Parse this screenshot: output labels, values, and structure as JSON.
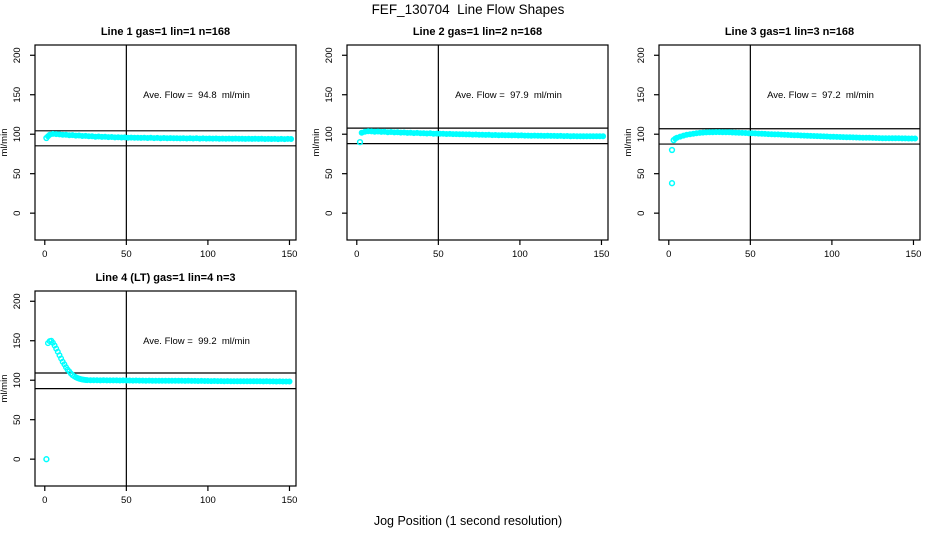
{
  "page": {
    "title": "FEF_130704  Line Flow Shapes",
    "xlabel": "Jog Position (1 second resolution)"
  },
  "style": {
    "accent": "#00FFFF",
    "text": "#000000",
    "background": "#FFFFFF"
  },
  "chart_data": [
    {
      "type": "scatter",
      "title": "Line 1 gas=1 lin=1 n=168",
      "ylabel": "ml/min",
      "annotation": "Ave. Flow =  94.8  ml/min",
      "ave_flow": 94.8,
      "xlim": [
        -6,
        154
      ],
      "ylim": [
        -34,
        213
      ],
      "xticks": [
        0,
        50,
        100,
        150
      ],
      "yticks": [
        0,
        50,
        100,
        150,
        200
      ],
      "vline_x": 50,
      "hlines_y": [
        104.3,
        85.3
      ],
      "line_start_x": 2,
      "outlier_points": [
        [
          1,
          95.2
        ]
      ],
      "points": [
        [
          2,
          97.5
        ],
        [
          3,
          99.3
        ],
        [
          5,
          100.4
        ],
        [
          7,
          100.2
        ],
        [
          9,
          99.8
        ],
        [
          11,
          99.2
        ],
        [
          13,
          99.4
        ],
        [
          15,
          98.7
        ],
        [
          17,
          98.9
        ],
        [
          19,
          98.2
        ],
        [
          21,
          98.4
        ],
        [
          23,
          97.7
        ],
        [
          25,
          97.9
        ],
        [
          27,
          97.3
        ],
        [
          29,
          97.5
        ],
        [
          31,
          96.9
        ],
        [
          33,
          97.1
        ],
        [
          35,
          96.6
        ],
        [
          37,
          96.8
        ],
        [
          39,
          96.3
        ],
        [
          41,
          96.5
        ],
        [
          43,
          96
        ],
        [
          45,
          96.2
        ],
        [
          47,
          95.8
        ],
        [
          49,
          95.9
        ],
        [
          51,
          95.6
        ],
        [
          53,
          95.7
        ],
        [
          55,
          95.4
        ],
        [
          57,
          95.6
        ],
        [
          59,
          95.3
        ],
        [
          61,
          95.5
        ],
        [
          63,
          95.2
        ],
        [
          65,
          95.4
        ],
        [
          67,
          95.1
        ],
        [
          69,
          95.3
        ],
        [
          71,
          95
        ],
        [
          73,
          95.2
        ],
        [
          75,
          94.9
        ],
        [
          77,
          95.1
        ],
        [
          79,
          94.8
        ],
        [
          81,
          95
        ],
        [
          83,
          94.7
        ],
        [
          85,
          94.9
        ],
        [
          87,
          94.6
        ],
        [
          89,
          94.8
        ],
        [
          91,
          94.6
        ],
        [
          93,
          94.8
        ],
        [
          95,
          94.5
        ],
        [
          97,
          94.7
        ],
        [
          99,
          94.5
        ],
        [
          101,
          94.6
        ],
        [
          103,
          94.4
        ],
        [
          105,
          94.6
        ],
        [
          107,
          94.3
        ],
        [
          109,
          94.5
        ],
        [
          111,
          94.3
        ],
        [
          113,
          94.5
        ],
        [
          115,
          94.2
        ],
        [
          117,
          94.4
        ],
        [
          119,
          94.2
        ],
        [
          121,
          94.3
        ],
        [
          123,
          94.1
        ],
        [
          125,
          94.3
        ],
        [
          127,
          94
        ],
        [
          129,
          94.2
        ],
        [
          131,
          94
        ],
        [
          133,
          94.2
        ],
        [
          135,
          93.9
        ],
        [
          137,
          94.1
        ],
        [
          139,
          93.9
        ],
        [
          141,
          94.1
        ],
        [
          143,
          93.8
        ],
        [
          145,
          94
        ],
        [
          147,
          93.8
        ],
        [
          149,
          94
        ],
        [
          151,
          93.9
        ]
      ]
    },
    {
      "type": "scatter",
      "title": "Line 2 gas=1 lin=2 n=168",
      "ylabel": "ml/min",
      "annotation": "Ave. Flow =  97.9  ml/min",
      "ave_flow": 97.9,
      "xlim": [
        -6,
        154
      ],
      "ylim": [
        -34,
        213
      ],
      "xticks": [
        0,
        50,
        100,
        150
      ],
      "yticks": [
        0,
        50,
        100,
        150,
        200
      ],
      "vline_x": 50,
      "hlines_y": [
        107.7,
        88.1
      ],
      "line_start_x": 3,
      "outlier_points": [
        [
          2,
          90
        ]
      ],
      "points": [
        [
          3,
          101.8
        ],
        [
          5,
          103.2
        ],
        [
          7,
          103.8
        ],
        [
          9,
          103.5
        ],
        [
          11,
          103.2
        ],
        [
          13,
          103.4
        ],
        [
          15,
          102.9
        ],
        [
          17,
          103.1
        ],
        [
          19,
          102.6
        ],
        [
          21,
          102.8
        ],
        [
          23,
          102.3
        ],
        [
          25,
          102.5
        ],
        [
          27,
          102
        ],
        [
          29,
          102.2
        ],
        [
          31,
          101.7
        ],
        [
          33,
          101.9
        ],
        [
          35,
          101.4
        ],
        [
          37,
          101.6
        ],
        [
          39,
          101.2
        ],
        [
          41,
          101.3
        ],
        [
          43,
          100.9
        ],
        [
          45,
          101.1
        ],
        [
          47,
          100.7
        ],
        [
          49,
          100.8
        ],
        [
          51,
          100.5
        ],
        [
          53,
          100.6
        ],
        [
          55,
          100.3
        ],
        [
          57,
          100.4
        ],
        [
          59,
          100.1
        ],
        [
          61,
          100.2
        ],
        [
          63,
          99.9
        ],
        [
          65,
          100
        ],
        [
          67,
          99.7
        ],
        [
          69,
          99.8
        ],
        [
          71,
          99.5
        ],
        [
          73,
          99.6
        ],
        [
          75,
          99.3
        ],
        [
          77,
          99.4
        ],
        [
          79,
          99.1
        ],
        [
          81,
          99.2
        ],
        [
          83,
          98.9
        ],
        [
          85,
          99
        ],
        [
          87,
          98.8
        ],
        [
          89,
          98.9
        ],
        [
          91,
          98.6
        ],
        [
          93,
          98.7
        ],
        [
          95,
          98.5
        ],
        [
          97,
          98.6
        ],
        [
          99,
          98.4
        ],
        [
          101,
          98.5
        ],
        [
          103,
          98.2
        ],
        [
          105,
          98.3
        ],
        [
          107,
          98.1
        ],
        [
          109,
          98.2
        ],
        [
          111,
          98
        ],
        [
          113,
          98.1
        ],
        [
          115,
          97.9
        ],
        [
          117,
          98
        ],
        [
          119,
          97.8
        ],
        [
          121,
          97.9
        ],
        [
          123,
          97.7
        ],
        [
          125,
          97.8
        ],
        [
          127,
          97.6
        ],
        [
          129,
          97.7
        ],
        [
          131,
          97.5
        ],
        [
          133,
          97.6
        ],
        [
          135,
          97.4
        ],
        [
          137,
          97.5
        ],
        [
          139,
          97.4
        ],
        [
          141,
          97.5
        ],
        [
          143,
          97.3
        ],
        [
          145,
          97.4
        ],
        [
          147,
          97.3
        ],
        [
          149,
          97.4
        ],
        [
          151,
          97.3
        ]
      ]
    },
    {
      "type": "scatter",
      "title": "Line 3 gas=1 lin=3 n=168",
      "ylabel": "ml/min",
      "annotation": "Ave. Flow =  97.2  ml/min",
      "ave_flow": 97.2,
      "xlim": [
        -6,
        154
      ],
      "ylim": [
        -34,
        213
      ],
      "xticks": [
        0,
        50,
        100,
        150
      ],
      "yticks": [
        0,
        50,
        100,
        150,
        200
      ],
      "vline_x": 50,
      "hlines_y": [
        106.9,
        87.5
      ],
      "line_start_x": 4,
      "outlier_points": [
        [
          2,
          38
        ],
        [
          2,
          80
        ],
        [
          3,
          92.5
        ]
      ],
      "points": [
        [
          4,
          94.5
        ],
        [
          5,
          95.5
        ],
        [
          7,
          97
        ],
        [
          9,
          98.2
        ],
        [
          11,
          99.2
        ],
        [
          13,
          100
        ],
        [
          15,
          100.7
        ],
        [
          17,
          101.2
        ],
        [
          19,
          101.7
        ],
        [
          21,
          102
        ],
        [
          23,
          102.3
        ],
        [
          25,
          102.5
        ],
        [
          27,
          102.6
        ],
        [
          29,
          102.7
        ],
        [
          31,
          102.7
        ],
        [
          33,
          102.6
        ],
        [
          35,
          102.5
        ],
        [
          37,
          102.4
        ],
        [
          39,
          102.2
        ],
        [
          41,
          102.1
        ],
        [
          43,
          101.9
        ],
        [
          45,
          101.7
        ],
        [
          47,
          101.5
        ],
        [
          49,
          101.3
        ],
        [
          51,
          101.2
        ],
        [
          53,
          101
        ],
        [
          55,
          100.8
        ],
        [
          57,
          100.6
        ],
        [
          59,
          100.4
        ],
        [
          61,
          100.2
        ],
        [
          63,
          100
        ],
        [
          65,
          99.8
        ],
        [
          67,
          99.7
        ],
        [
          69,
          99.5
        ],
        [
          71,
          99.3
        ],
        [
          73,
          99.1
        ],
        [
          75,
          98.9
        ],
        [
          77,
          98.8
        ],
        [
          79,
          98.6
        ],
        [
          81,
          98.4
        ],
        [
          83,
          98.2
        ],
        [
          85,
          98.1
        ],
        [
          87,
          97.9
        ],
        [
          89,
          97.7
        ],
        [
          91,
          97.6
        ],
        [
          93,
          97.4
        ],
        [
          95,
          97.2
        ],
        [
          97,
          97.1
        ],
        [
          99,
          96.9
        ],
        [
          101,
          96.8
        ],
        [
          103,
          96.6
        ],
        [
          105,
          96.5
        ],
        [
          107,
          96.3
        ],
        [
          109,
          96.2
        ],
        [
          111,
          96.1
        ],
        [
          113,
          95.9
        ],
        [
          115,
          95.8
        ],
        [
          117,
          95.7
        ],
        [
          119,
          95.6
        ],
        [
          121,
          95.5
        ],
        [
          123,
          95.4
        ],
        [
          125,
          95.3
        ],
        [
          127,
          95.2
        ],
        [
          129,
          95.1
        ],
        [
          131,
          95
        ],
        [
          133,
          95
        ],
        [
          135,
          94.9
        ],
        [
          137,
          94.9
        ],
        [
          139,
          94.8
        ],
        [
          141,
          94.8
        ],
        [
          143,
          94.7
        ],
        [
          145,
          94.7
        ],
        [
          147,
          94.6
        ],
        [
          149,
          94.6
        ],
        [
          151,
          94.6
        ]
      ]
    },
    {
      "type": "scatter",
      "title": "Line 4 (LT) gas=1 lin=4 n=3",
      "ylabel": "ml/min",
      "annotation": "Ave. Flow =  99.2  ml/min",
      "ave_flow": 99.2,
      "xlim": [
        -6,
        154
      ],
      "ylim": [
        -34,
        213
      ],
      "xticks": [
        0,
        50,
        100,
        150
      ],
      "yticks": [
        0,
        50,
        100,
        150,
        200
      ],
      "vline_x": 50,
      "hlines_y": [
        109.1,
        89.3
      ],
      "line_start_x": 26,
      "outlier_points": [
        [
          1,
          0
        ]
      ],
      "points": [
        [
          2,
          147
        ],
        [
          3,
          149.5
        ],
        [
          4,
          150
        ],
        [
          5,
          147.5
        ],
        [
          6,
          144
        ],
        [
          7,
          140
        ],
        [
          8,
          136
        ],
        [
          9,
          131.5
        ],
        [
          10,
          127.5
        ],
        [
          11,
          123.5
        ],
        [
          12,
          120
        ],
        [
          13,
          116.5
        ],
        [
          14,
          113.5
        ],
        [
          15,
          111
        ],
        [
          16,
          108.5
        ],
        [
          17,
          106.5
        ],
        [
          18,
          105
        ],
        [
          19,
          103.8
        ],
        [
          20,
          102.8
        ],
        [
          21,
          102
        ],
        [
          22,
          101.4
        ],
        [
          23,
          100.9
        ],
        [
          24,
          100.6
        ],
        [
          25,
          100.3
        ],
        [
          26,
          100.1
        ],
        [
          28,
          100
        ],
        [
          30,
          99.9
        ],
        [
          32,
          100
        ],
        [
          34,
          99.8
        ],
        [
          36,
          99.9
        ],
        [
          38,
          99.8
        ],
        [
          40,
          99.8
        ],
        [
          42,
          99.7
        ],
        [
          44,
          99.8
        ],
        [
          46,
          99.6
        ],
        [
          48,
          99.7
        ],
        [
          50,
          99.6
        ],
        [
          52,
          99.6
        ],
        [
          54,
          99.5
        ],
        [
          56,
          99.6
        ],
        [
          58,
          99.5
        ],
        [
          60,
          99.5
        ],
        [
          62,
          99.4
        ],
        [
          64,
          99.5
        ],
        [
          66,
          99.4
        ],
        [
          68,
          99.4
        ],
        [
          70,
          99.3
        ],
        [
          72,
          99.4
        ],
        [
          74,
          99.3
        ],
        [
          76,
          99.3
        ],
        [
          78,
          99.2
        ],
        [
          80,
          99.3
        ],
        [
          82,
          99.2
        ],
        [
          84,
          99.2
        ],
        [
          86,
          99.1
        ],
        [
          88,
          99.2
        ],
        [
          90,
          99.1
        ],
        [
          92,
          99.1
        ],
        [
          94,
          99
        ],
        [
          96,
          99.1
        ],
        [
          98,
          99
        ],
        [
          100,
          99
        ],
        [
          102,
          98.9
        ],
        [
          104,
          99
        ],
        [
          106,
          98.9
        ],
        [
          108,
          98.9
        ],
        [
          110,
          98.8
        ],
        [
          112,
          98.9
        ],
        [
          114,
          98.8
        ],
        [
          116,
          98.8
        ],
        [
          118,
          98.7
        ],
        [
          120,
          98.8
        ],
        [
          122,
          98.7
        ],
        [
          124,
          98.7
        ],
        [
          126,
          98.6
        ],
        [
          128,
          98.7
        ],
        [
          130,
          98.6
        ],
        [
          132,
          98.6
        ],
        [
          134,
          98.5
        ],
        [
          136,
          98.6
        ],
        [
          138,
          98.5
        ],
        [
          140,
          98.5
        ],
        [
          142,
          98.4
        ],
        [
          144,
          98.5
        ],
        [
          146,
          98.4
        ],
        [
          148,
          98.4
        ],
        [
          150,
          98.4
        ]
      ]
    }
  ]
}
